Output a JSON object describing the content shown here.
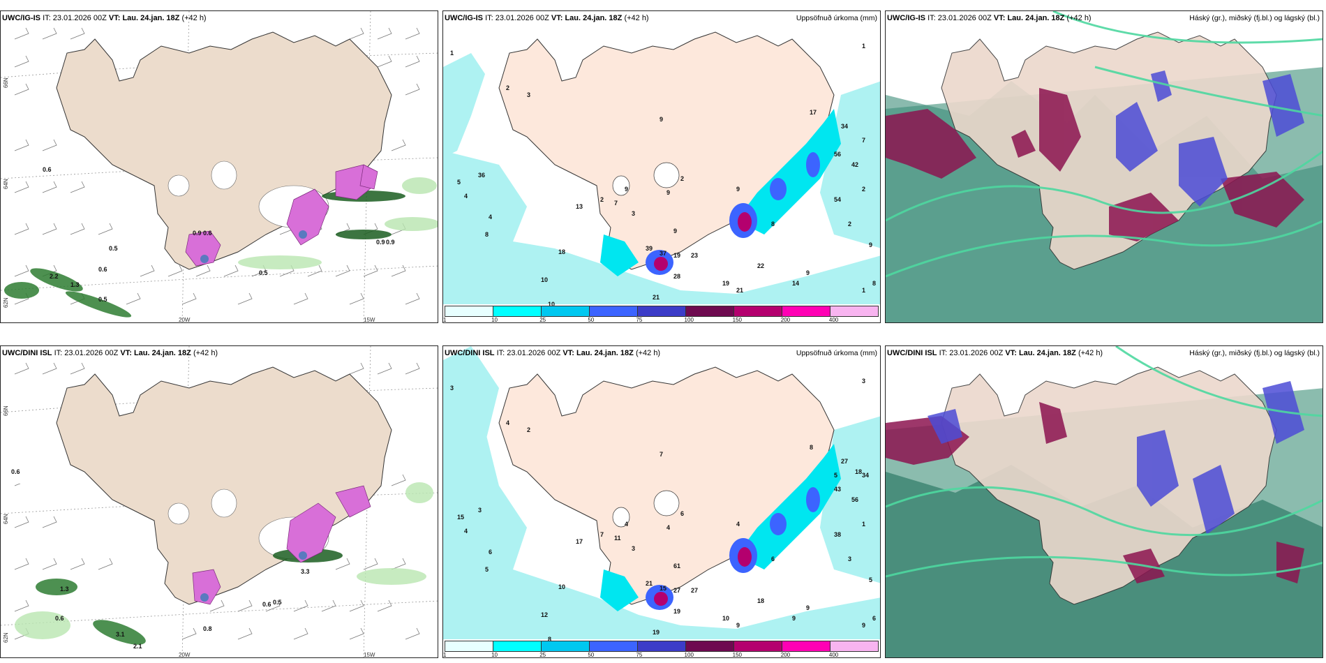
{
  "rows": [
    {
      "model": "UWC/IG-IS",
      "it_label": "IT:",
      "it": "23.01.2026 00Z",
      "vt_label": "VT:",
      "vt": "Lau. 24.jan. 18Z",
      "lead": "(+42 h)",
      "left_labels": [
        "0.6",
        "0.5",
        "0.6",
        "0.5",
        "2.2",
        "1.3",
        "0.9",
        "0.6",
        "0.5",
        "0.9",
        "0.9"
      ],
      "mid_labels": [
        "1",
        "1",
        "2",
        "3",
        "9",
        "36",
        "4",
        "7",
        "4",
        "8",
        "5",
        "2",
        "13",
        "18",
        "3",
        "9",
        "9",
        "39",
        "37",
        "19",
        "23",
        "22",
        "28",
        "19",
        "21",
        "14",
        "9",
        "10",
        "9",
        "8",
        "21",
        "10",
        "17",
        "34",
        "56",
        "42",
        "54",
        "2",
        "2",
        "9",
        "8",
        "1",
        "2",
        "9",
        "7"
      ],
      "axis": {
        "lon1": "20W",
        "lon2": "15W",
        "lat1": "66N",
        "lat2": "64N",
        "lat3": "62N"
      }
    },
    {
      "model": "UWC/DINI ISL",
      "it_label": "IT:",
      "it": "23.01.2026 00Z",
      "vt_label": "VT:",
      "vt": "Lau. 24.jan. 18Z",
      "lead": "(+42 h)",
      "left_labels": [
        "0.6",
        "1.3",
        "0.6",
        "3.1",
        "2.1",
        "0.8",
        "0.6",
        "0.5",
        "3.3"
      ],
      "mid_labels": [
        "3",
        "3",
        "4",
        "2",
        "7",
        "3",
        "6",
        "34",
        "4",
        "5",
        "15",
        "7",
        "17",
        "10",
        "3",
        "4",
        "61",
        "21",
        "15",
        "27",
        "27",
        "18",
        "19",
        "10",
        "9",
        "9",
        "9",
        "8",
        "4",
        "6",
        "19",
        "12",
        "8",
        "27",
        "43",
        "56",
        "38",
        "1",
        "3",
        "5",
        "6",
        "9",
        "6",
        "4",
        "11",
        "5",
        "18"
      ],
      "axis": {
        "lon1": "20W",
        "lon2": "15W",
        "lat1": "66N",
        "lat2": "64N",
        "lat3": "62N"
      }
    }
  ],
  "middle_title": "Uppsöfnuð úrkoma (mm)",
  "right_title": "Háský (gr.), miðský (fj.bl.) og lágský (bl.)",
  "colorbar": {
    "ticks": [
      "1",
      "10",
      "25",
      "50",
      "75",
      "100",
      "150",
      "200",
      "400"
    ],
    "colors": [
      "#e8ffff",
      "#00ffff",
      "#00c8f0",
      "#3c64ff",
      "#3c3cc8",
      "#6e0a50",
      "#b4006e",
      "#ff00b4",
      "#f8b4f0"
    ]
  },
  "legend_colors": {
    "land": "#ecdccc",
    "land_precip": "#fde8dc",
    "ocean_precip": "#00ffff",
    "high_cloud": "#3cc88c",
    "mid_cloud": "#8c1450",
    "low_cloud": "#3c3cc8"
  }
}
